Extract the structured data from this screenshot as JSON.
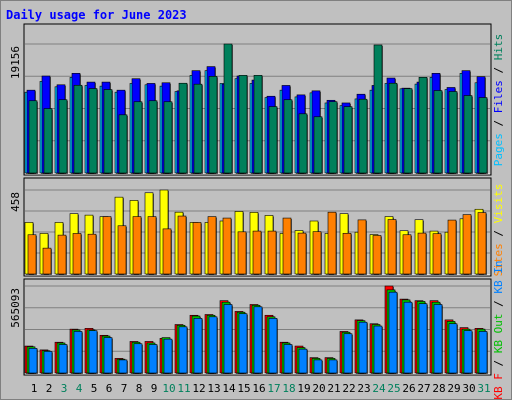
{
  "title": "Daily usage for June 2023",
  "colors": {
    "hits": "#00805c",
    "files": "#0000ff",
    "pages": "#00c0ff",
    "visits": "#ffff00",
    "sites": "#ff8000",
    "kb_in": "#0080ff",
    "kb_out": "#00c000",
    "kb_f": "#ff0000",
    "weekend_day": "#00805c",
    "weekday": "#000000"
  },
  "chart_data": [
    {
      "type": "bar",
      "title": "Pages / Files / Hits",
      "ymax_label": "19156",
      "ylim": [
        0,
        19156
      ],
      "categories": [
        "1",
        "2",
        "3",
        "4",
        "5",
        "6",
        "7",
        "8",
        "9",
        "10",
        "11",
        "12",
        "13",
        "14",
        "15",
        "16",
        "17",
        "18",
        "19",
        "20",
        "21",
        "22",
        "23",
        "24",
        "25",
        "26",
        "27",
        "28",
        "29",
        "30",
        "31"
      ],
      "legend": [
        "Pages",
        "Files",
        "Hits"
      ],
      "series": [
        {
          "name": "Pages",
          "values": [
            12000,
            13600,
            12800,
            14200,
            13000,
            12900,
            12000,
            13300,
            13100,
            12900,
            12100,
            14500,
            15200,
            13300,
            14000,
            13300,
            11200,
            12300,
            11300,
            11900,
            10400,
            10000,
            11000,
            12300,
            13300,
            12500,
            13200,
            14200,
            12400,
            14800,
            13400
          ]
        },
        {
          "name": "Files",
          "values": [
            12300,
            14400,
            13100,
            14800,
            13500,
            13500,
            12300,
            14000,
            13300,
            13400,
            12200,
            15200,
            15800,
            13200,
            14400,
            13800,
            11400,
            13000,
            11600,
            12200,
            10800,
            10400,
            11700,
            13000,
            14100,
            12600,
            13500,
            14800,
            12700,
            15200,
            14300
          ]
        },
        {
          "name": "Hits",
          "values": [
            10730,
            9560,
            10880,
            13030,
            12540,
            12390,
            8640,
            10580,
            10730,
            10580,
            13330,
            13190,
            14350,
            19156,
            14500,
            14500,
            9860,
            10880,
            8790,
            8350,
            10590,
            9850,
            10960,
            19010,
            13330,
            12530,
            14210,
            12240,
            12100,
            11500,
            11200
          ]
        }
      ]
    },
    {
      "type": "bar",
      "title": "Visits / Sites",
      "ymax_label": "458",
      "ylim": [
        0,
        458
      ],
      "categories": [
        "1",
        "2",
        "3",
        "4",
        "5",
        "6",
        "7",
        "8",
        "9",
        "10",
        "11",
        "12",
        "13",
        "14",
        "15",
        "16",
        "17",
        "18",
        "19",
        "20",
        "21",
        "22",
        "23",
        "24",
        "25",
        "26",
        "27",
        "28",
        "29",
        "30",
        "31"
      ],
      "legend": [
        "Visits",
        "Sites"
      ],
      "series": [
        {
          "name": "Visits",
          "values": [
            281,
            221,
            281,
            329,
            321,
            313,
            419,
            401,
            443,
            458,
            337,
            281,
            281,
            289,
            341,
            336,
            319,
            221,
            237,
            289,
            221,
            329,
            228,
            215,
            313,
            236,
            296,
            234,
            228,
            301,
            353
          ]
        },
        {
          "name": "Sites",
          "values": [
            214,
            141,
            212,
            221,
            217,
            313,
            263,
            313,
            313,
            246,
            316,
            281,
            313,
            305,
            230,
            234,
            234,
            305,
            223,
            231,
            337,
            222,
            295,
            210,
            297,
            214,
            223,
            220,
            294,
            324,
            335
          ]
        }
      ]
    },
    {
      "type": "bar",
      "title": "KB F / KB Out / KB In",
      "ymax_label": "565093",
      "ylim": [
        0,
        565093
      ],
      "categories": [
        "1",
        "2",
        "3",
        "4",
        "5",
        "6",
        "7",
        "8",
        "9",
        "10",
        "11",
        "12",
        "13",
        "14",
        "15",
        "16",
        "17",
        "18",
        "19",
        "20",
        "21",
        "22",
        "23",
        "24",
        "25",
        "26",
        "27",
        "28",
        "29",
        "30",
        "31"
      ],
      "legend": [
        "KB F",
        "KB Out",
        "KB In"
      ],
      "series": [
        {
          "name": "KB F",
          "values": [
            175000,
            150000,
            200000,
            285000,
            290000,
            245000,
            95000,
            205000,
            205000,
            225000,
            315000,
            375000,
            380000,
            470000,
            400000,
            445000,
            375000,
            200000,
            175000,
            100000,
            100000,
            270000,
            345000,
            320000,
            565093,
            480000,
            470000,
            470000,
            345000,
            295000,
            290000
          ]
        },
        {
          "name": "KB Out",
          "values": [
            170000,
            145000,
            195000,
            280000,
            280000,
            240000,
            90000,
            200000,
            195000,
            230000,
            310000,
            370000,
            375000,
            460000,
            395000,
            440000,
            365000,
            195000,
            165000,
            95000,
            95000,
            265000,
            340000,
            315000,
            540000,
            475000,
            465000,
            460000,
            335000,
            285000,
            285000
          ]
        },
        {
          "name": "KB In",
          "values": [
            160000,
            140000,
            185000,
            270000,
            275000,
            230000,
            85000,
            190000,
            185000,
            220000,
            300000,
            355000,
            365000,
            445000,
            385000,
            430000,
            355000,
            185000,
            155000,
            85000,
            85000,
            255000,
            330000,
            305000,
            525000,
            460000,
            450000,
            445000,
            320000,
            275000,
            270000
          ]
        }
      ]
    }
  ],
  "days": [
    {
      "label": "1",
      "weekend": false
    },
    {
      "label": "2",
      "weekend": false
    },
    {
      "label": "3",
      "weekend": true
    },
    {
      "label": "4",
      "weekend": true
    },
    {
      "label": "5",
      "weekend": false
    },
    {
      "label": "6",
      "weekend": false
    },
    {
      "label": "7",
      "weekend": false
    },
    {
      "label": "8",
      "weekend": false
    },
    {
      "label": "9",
      "weekend": false
    },
    {
      "label": "10",
      "weekend": true
    },
    {
      "label": "11",
      "weekend": true
    },
    {
      "label": "12",
      "weekend": false
    },
    {
      "label": "13",
      "weekend": false
    },
    {
      "label": "14",
      "weekend": false
    },
    {
      "label": "15",
      "weekend": false
    },
    {
      "label": "16",
      "weekend": false
    },
    {
      "label": "17",
      "weekend": true
    },
    {
      "label": "18",
      "weekend": true
    },
    {
      "label": "19",
      "weekend": false
    },
    {
      "label": "20",
      "weekend": false
    },
    {
      "label": "21",
      "weekend": false
    },
    {
      "label": "22",
      "weekend": false
    },
    {
      "label": "23",
      "weekend": false
    },
    {
      "label": "24",
      "weekend": true
    },
    {
      "label": "25",
      "weekend": true
    },
    {
      "label": "26",
      "weekend": false
    },
    {
      "label": "27",
      "weekend": false
    },
    {
      "label": "28",
      "weekend": false
    },
    {
      "label": "29",
      "weekend": false
    },
    {
      "label": "30",
      "weekend": false
    },
    {
      "label": "31",
      "weekend": true
    }
  ],
  "right_legends": [
    {
      "parts": [
        {
          "text": "Pages",
          "color_key": "pages"
        },
        {
          "text": " / ",
          "color_key": "weekday"
        },
        {
          "text": "Files",
          "color_key": "files"
        },
        {
          "text": " / ",
          "color_key": "weekday"
        },
        {
          "text": "Hits",
          "color_key": "hits"
        }
      ]
    },
    {
      "parts": [
        {
          "text": "Sites",
          "color_key": "sites"
        },
        {
          "text": " / ",
          "color_key": "weekday"
        },
        {
          "text": "Visits",
          "color_key": "visits"
        }
      ]
    },
    {
      "parts": [
        {
          "text": "KB F",
          "color_key": "kb_f"
        },
        {
          "text": " / ",
          "color_key": "weekday"
        },
        {
          "text": "KB Out",
          "color_key": "kb_out"
        },
        {
          "text": " / ",
          "color_key": "weekday"
        },
        {
          "text": "KB In",
          "color_key": "kb_in"
        }
      ]
    }
  ]
}
